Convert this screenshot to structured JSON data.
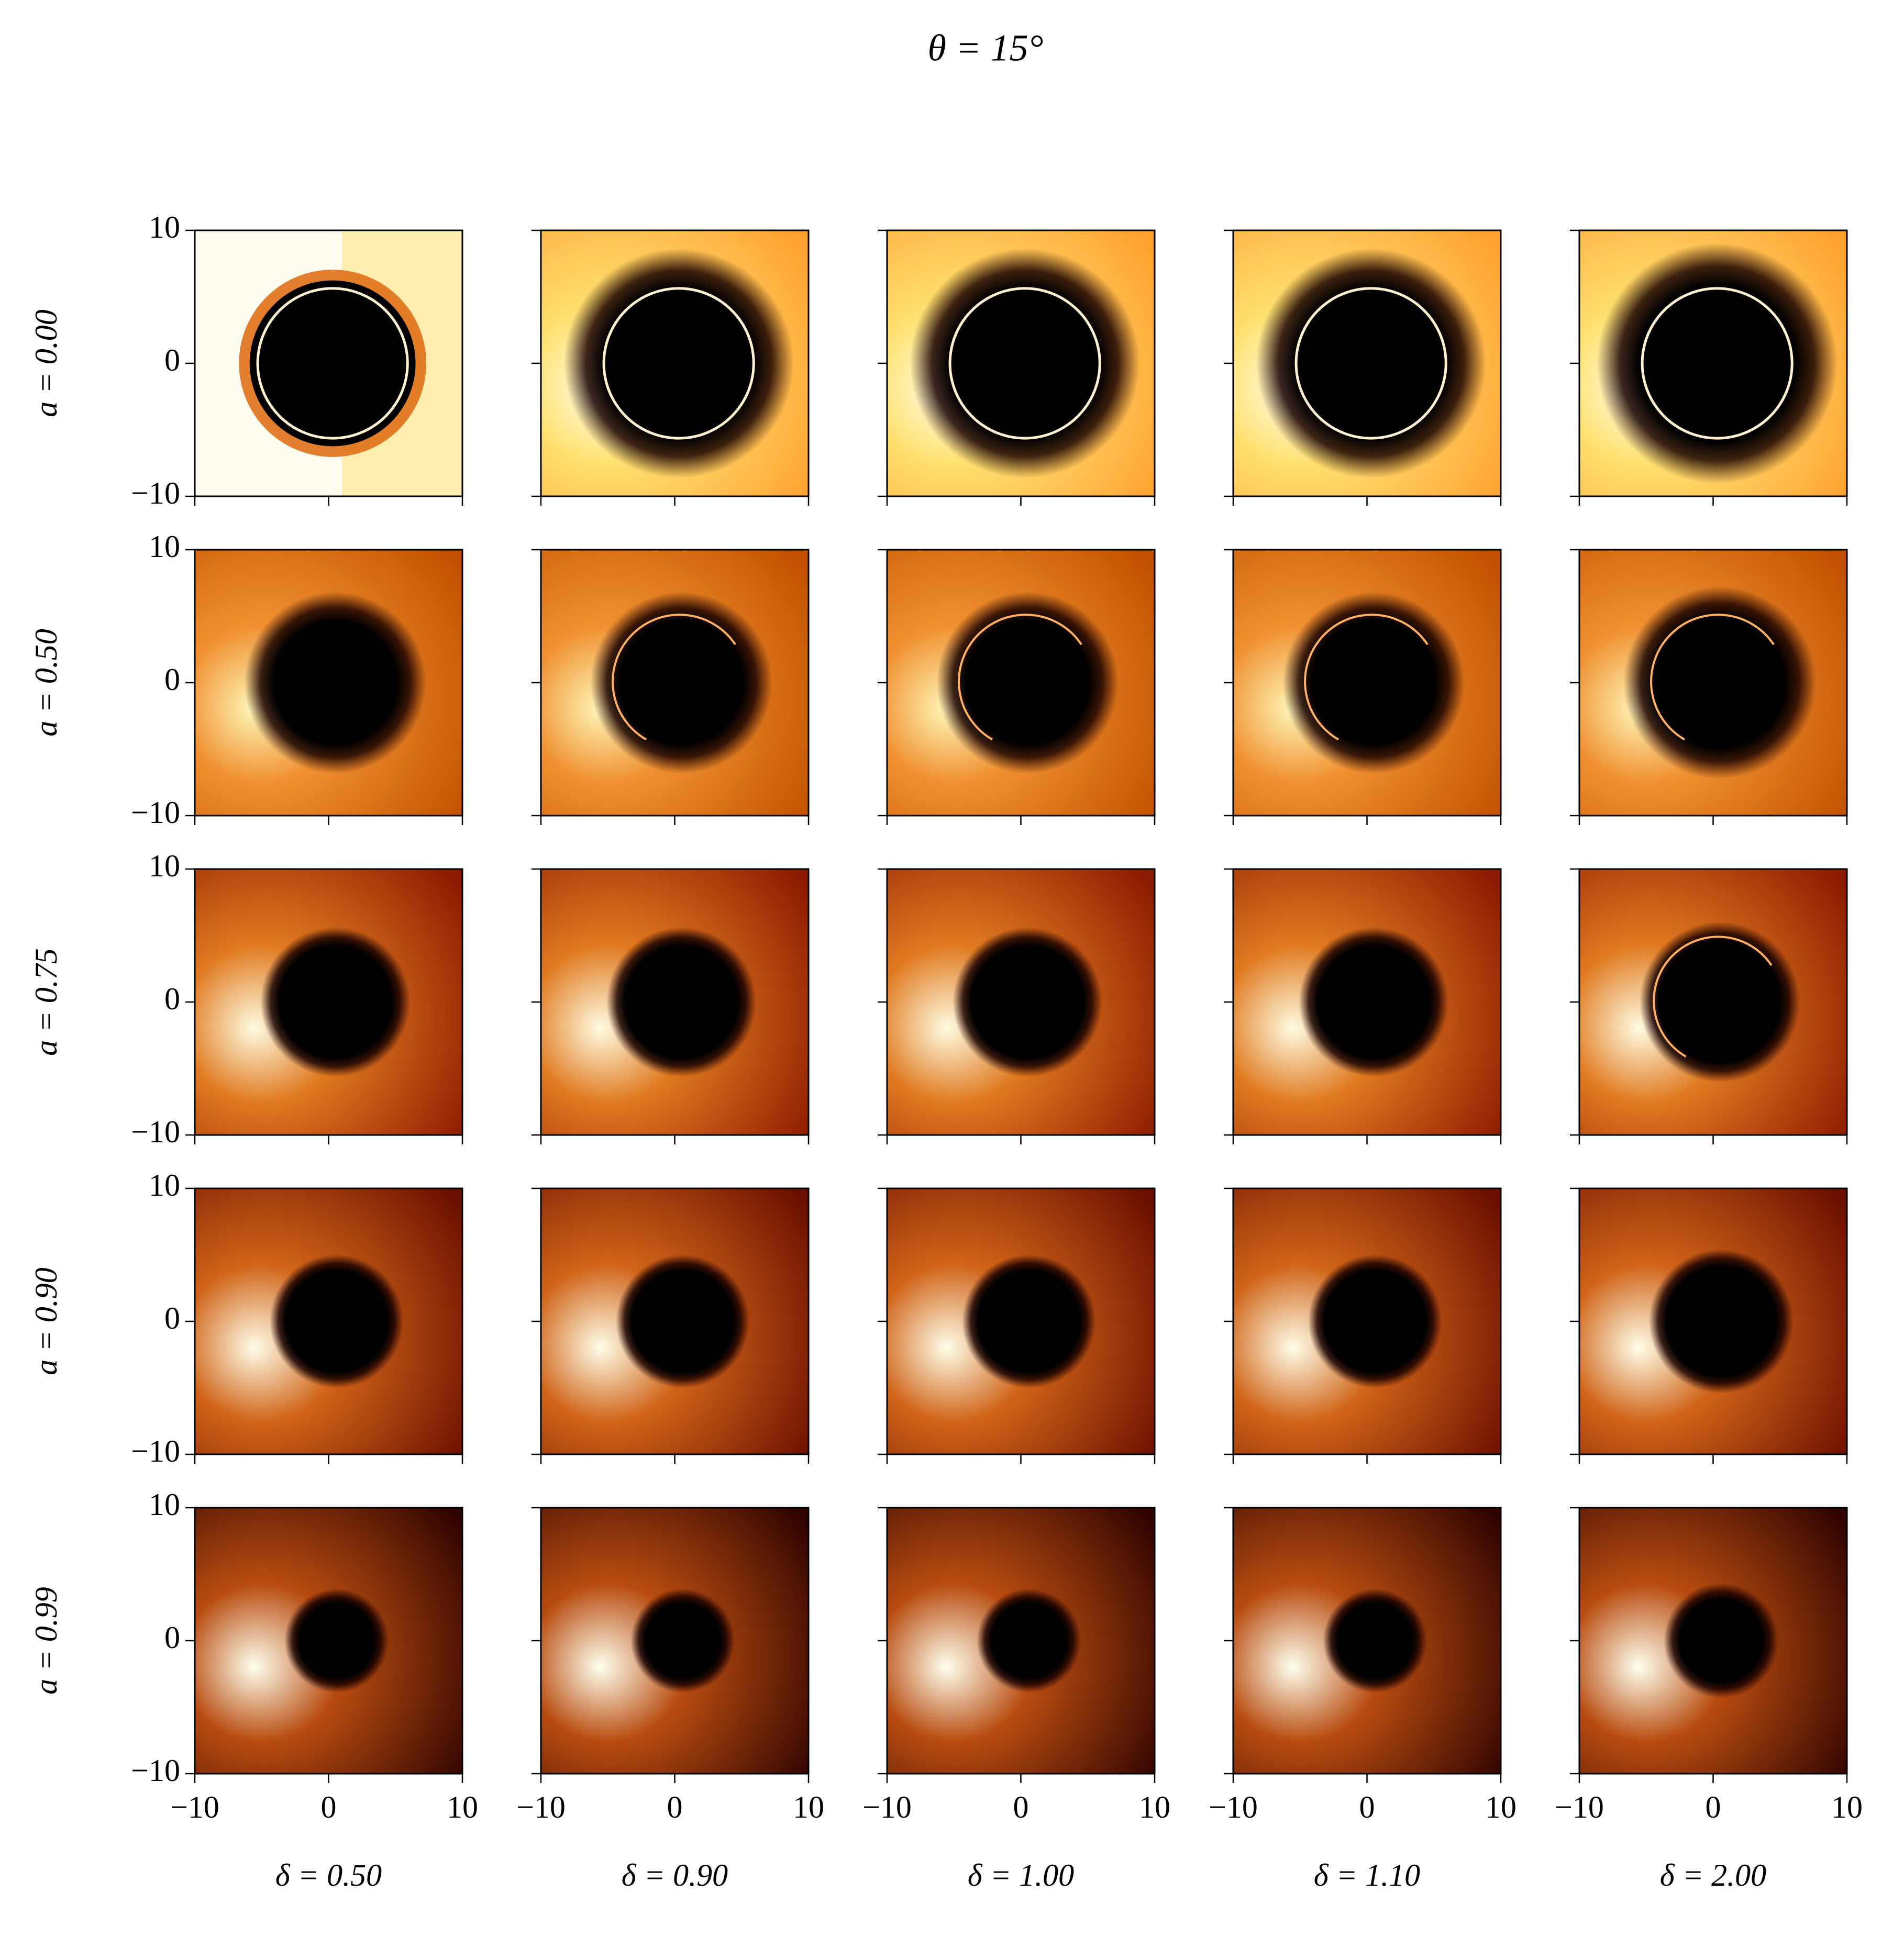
{
  "chart_data": {
    "type": "image_grid",
    "title": "θ = 15°",
    "rows": [
      "a = 0.00",
      "a = 0.50",
      "a = 0.75",
      "a = 0.90",
      "a = 0.99"
    ],
    "columns": [
      "δ = 0.50",
      "δ = 0.90",
      "δ = 1.00",
      "δ = 1.10",
      "δ = 2.00"
    ],
    "xlim": [
      -10,
      10
    ],
    "ylim": [
      -10,
      10
    ],
    "xticks": [
      {
        "value": -10,
        "label": "−10"
      },
      0,
      10
    ],
    "yticks": [
      {
        "value": -10,
        "label": "−10"
      },
      0,
      10
    ],
    "colormap": "afmhot"
  }
}
